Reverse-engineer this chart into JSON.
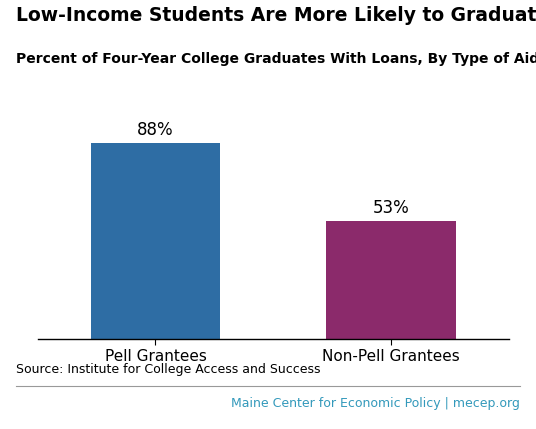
{
  "title": "Low-Income Students Are More Likely to Graduate with Debt",
  "subtitle": "Percent of Four-Year College Graduates With Loans, By Type of Aid Received",
  "categories": [
    "Pell Grantees",
    "Non-Pell Grantees"
  ],
  "values": [
    88,
    53
  ],
  "labels": [
    "88%",
    "53%"
  ],
  "bar_colors": [
    "#2e6da4",
    "#8b2a6b"
  ],
  "ylim": [
    0,
    100
  ],
  "source_text": "Source: Institute for College Access and Success",
  "footer_text": "Maine Center for Economic Policy | mecep.org",
  "footer_color": "#3399bb",
  "background_color": "#ffffff",
  "title_fontsize": 13.5,
  "subtitle_fontsize": 10,
  "label_fontsize": 12,
  "tick_fontsize": 11,
  "source_fontsize": 9,
  "footer_fontsize": 9
}
